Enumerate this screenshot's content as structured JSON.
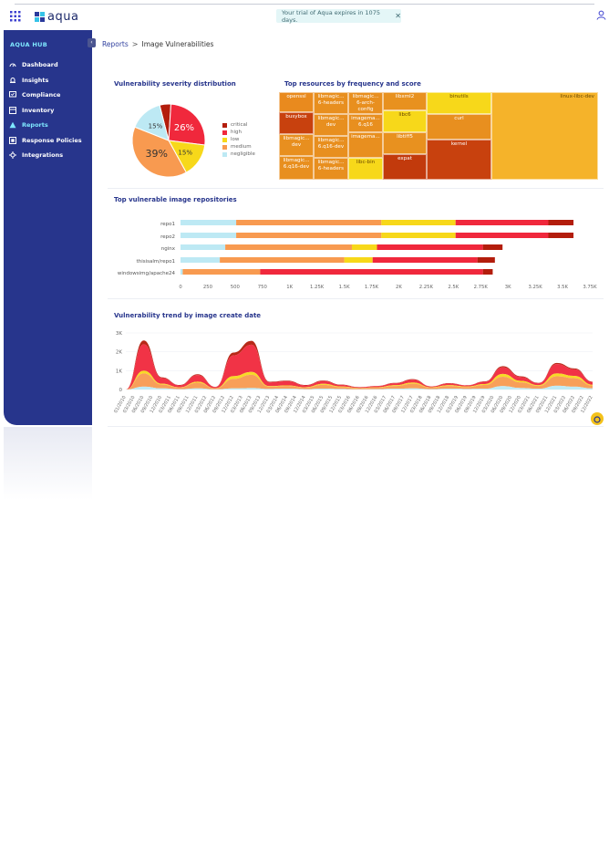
{
  "header": {
    "logo_text": "aqua",
    "trial_text": "Your trial of Aqua expires in 1075 days.",
    "close_glyph": "✕"
  },
  "sidebar": {
    "title": "AQUA HUB",
    "collapse_glyph": "‹",
    "items": [
      {
        "label": "Dashboard",
        "icon": "dashboard-icon"
      },
      {
        "label": "Insights",
        "icon": "bell-icon"
      },
      {
        "label": "Compliance",
        "icon": "check-screen-icon"
      },
      {
        "label": "Inventory",
        "icon": "box-icon"
      },
      {
        "label": "Reports",
        "icon": "warning-icon",
        "active": true
      },
      {
        "label": "Response Policies",
        "icon": "policy-icon"
      },
      {
        "label": "Integrations",
        "icon": "integrations-icon"
      }
    ]
  },
  "breadcrumb": {
    "root": "Reports",
    "separator": ">",
    "current": "Image Vulnerabilities"
  },
  "cards": {
    "severity_title": "Vulnerability severity distribution",
    "treemap_title": "Top resources by frequency and score",
    "repos_title": "Top vulnerable image repositories",
    "trend_title": "Vulnerability trend by image create date"
  },
  "colors": {
    "critical": "#b31d0c",
    "high": "#f0283c",
    "low": "#f7d81a",
    "medium": "#f89a50",
    "negligible": "#bde9f4",
    "nav_bg": "#27358c",
    "accent": "#7fe8ff"
  },
  "chart_data": [
    {
      "type": "pie",
      "title": "Vulnerability severity distribution",
      "slices": [
        {
          "name": "critical",
          "value": 5
        },
        {
          "name": "high",
          "value": 26
        },
        {
          "name": "low",
          "value": 15
        },
        {
          "name": "medium",
          "value": 39
        },
        {
          "name": "negligible",
          "value": 15
        }
      ],
      "slice_labels": [
        {
          "name": "high",
          "text": "26%"
        },
        {
          "name": "low",
          "text": "15%"
        },
        {
          "name": "medium",
          "text": "39%"
        },
        {
          "name": "negligible",
          "text": "15%"
        }
      ],
      "legend": [
        "critical",
        "high",
        "low",
        "medium",
        "negligible"
      ]
    },
    {
      "type": "treemap",
      "title": "Top resources by frequency and score",
      "cells": [
        {
          "label": "openssl",
          "severity": "medium"
        },
        {
          "label": "busybox",
          "severity": "critical"
        },
        {
          "label": "libmagic... dev",
          "severity": "medium"
        },
        {
          "label": "libmagic... 6.q16-dev",
          "severity": "medium"
        },
        {
          "label": "libmagic... 6-headers",
          "severity": "medium"
        },
        {
          "label": "libmagic... dev",
          "severity": "medium"
        },
        {
          "label": "libmagic... 6.q16-dev",
          "severity": "medium"
        },
        {
          "label": "libmagic... 6-headers",
          "severity": "medium"
        },
        {
          "label": "libmagic... 6-arch-config",
          "severity": "medium"
        },
        {
          "label": "imagema... 6.q16",
          "severity": "medium"
        },
        {
          "label": "imagema...",
          "severity": "medium"
        },
        {
          "label": "libc-bin",
          "severity": "low"
        },
        {
          "label": "libxml2",
          "severity": "medium"
        },
        {
          "label": "libc6",
          "severity": "low"
        },
        {
          "label": "libtiff5",
          "severity": "medium"
        },
        {
          "label": "expat",
          "severity": "critical"
        },
        {
          "label": "binutils",
          "severity": "low"
        },
        {
          "label": "curl",
          "severity": "medium"
        },
        {
          "label": "kernel",
          "severity": "critical"
        },
        {
          "label": "linux-libc-dev",
          "severity": "medium"
        }
      ]
    },
    {
      "type": "bar",
      "orientation": "horizontal",
      "stacked": true,
      "title": "Top vulnerable image repositories",
      "categories": [
        "repo1",
        "repo2",
        "nginx",
        "thisisalm/repo1",
        "windowsimg/apache24"
      ],
      "series": [
        {
          "name": "negligible",
          "values": [
            510,
            510,
            410,
            360,
            20
          ]
        },
        {
          "name": "medium",
          "values": [
            1330,
            1330,
            1160,
            1140,
            710
          ]
        },
        {
          "name": "low",
          "values": [
            680,
            680,
            230,
            260,
            0
          ]
        },
        {
          "name": "high",
          "values": [
            850,
            850,
            970,
            960,
            2040
          ]
        },
        {
          "name": "critical",
          "values": [
            230,
            230,
            180,
            160,
            90
          ]
        }
      ],
      "xticks": [
        "0",
        "250",
        "500",
        "750",
        "1K",
        "1.25K",
        "1.5K",
        "1.75K",
        "2K",
        "2.25K",
        "2.5K",
        "2.75K",
        "3K",
        "3.25K",
        "3.5K",
        "3.75K"
      ],
      "xlim": [
        0,
        3750
      ]
    },
    {
      "type": "area",
      "stacked": true,
      "title": "Vulnerability trend by image create date",
      "yticks": [
        "0",
        "1K",
        "2K",
        "3K"
      ],
      "ylim": [
        0,
        3000
      ],
      "x": [
        "01/2010",
        "07/2010",
        "01/2011",
        "07/2011",
        "01/2012",
        "07/2012",
        "01/2013",
        "07/2013",
        "01/2014",
        "07/2014",
        "01/2015",
        "07/2015",
        "01/2016",
        "07/2016",
        "01/2017",
        "07/2017",
        "01/2018",
        "07/2018",
        "01/2019",
        "07/2019",
        "01/2020",
        "07/2020",
        "01/2021",
        "07/2021",
        "01/2022",
        "07/2022",
        "12/2022"
      ],
      "xtick_labels": [
        "01/2010",
        "03/2010",
        "06/2010",
        "09/2010",
        "12/2010",
        "03/2011",
        "06/2011",
        "09/2011",
        "12/2011",
        "03/2012",
        "06/2012",
        "09/2012",
        "12/2012",
        "03/2013",
        "06/2013",
        "09/2013",
        "12/2013",
        "03/2014",
        "06/2014",
        "09/2014",
        "12/2014",
        "03/2015",
        "06/2015",
        "09/2015",
        "12/2015",
        "03/2016",
        "06/2016",
        "09/2016",
        "12/2016",
        "03/2017",
        "06/2017",
        "09/2017",
        "12/2017",
        "03/2018",
        "06/2018",
        "09/2018",
        "12/2018",
        "03/2019",
        "06/2019",
        "09/2019",
        "12/2019",
        "03/2020",
        "06/2020",
        "09/2020",
        "12/2020",
        "03/2021",
        "06/2021",
        "09/2021",
        "12/2021",
        "03/2022",
        "06/2022",
        "09/2022",
        "12/2022"
      ],
      "series": [
        {
          "name": "negligible",
          "values": [
            0,
            150,
            60,
            20,
            60,
            10,
            60,
            80,
            30,
            40,
            20,
            50,
            30,
            10,
            20,
            40,
            60,
            20,
            40,
            30,
            40,
            180,
            80,
            40,
            200,
            150,
            60
          ]
        },
        {
          "name": "medium",
          "values": [
            0,
            700,
            200,
            80,
            300,
            50,
            500,
            700,
            120,
            150,
            80,
            200,
            100,
            60,
            80,
            150,
            250,
            80,
            150,
            100,
            200,
            500,
            300,
            150,
            500,
            450,
            150
          ]
        },
        {
          "name": "low",
          "values": [
            0,
            150,
            50,
            20,
            60,
            10,
            150,
            150,
            30,
            30,
            20,
            50,
            30,
            10,
            20,
            40,
            60,
            20,
            40,
            30,
            50,
            150,
            80,
            40,
            150,
            120,
            40
          ]
        },
        {
          "name": "high",
          "values": [
            0,
            1400,
            300,
            100,
            350,
            60,
            1100,
            1450,
            200,
            220,
            100,
            150,
            80,
            40,
            60,
            100,
            150,
            40,
            90,
            60,
            120,
            350,
            200,
            100,
            500,
            350,
            150
          ]
        },
        {
          "name": "critical",
          "values": [
            0,
            200,
            40,
            20,
            40,
            10,
            150,
            200,
            30,
            30,
            20,
            30,
            20,
            10,
            10,
            20,
            30,
            10,
            20,
            10,
            20,
            60,
            40,
            20,
            60,
            50,
            20
          ]
        }
      ]
    }
  ]
}
